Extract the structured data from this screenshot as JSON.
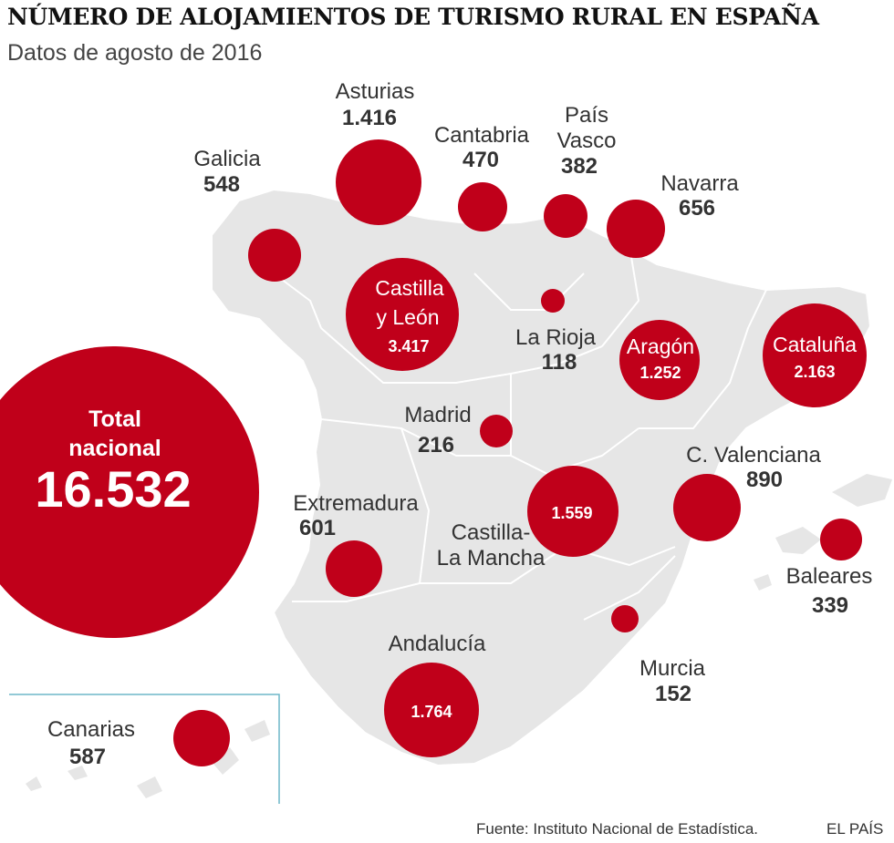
{
  "title": "NÚMERO DE ALOJAMIENTOS DE TURISMO RURAL EN ESPAÑA",
  "subtitle": "Datos de agosto de 2016",
  "source": "Fuente: Instituto Nacional de Estadística.",
  "brand": "EL PAÍS",
  "colors": {
    "bubble": "#c0001a",
    "land": "#e6e6e6",
    "borders": "#ffffff",
    "inset_frame": "#6fb7c9"
  },
  "total": {
    "label_line1": "Total",
    "label_line2": "nacional",
    "value": "16.532"
  },
  "regions": [
    {
      "id": "galicia",
      "name_lines": [
        "Galicia"
      ],
      "value": "548"
    },
    {
      "id": "asturias",
      "name_lines": [
        "Asturias"
      ],
      "value": "1.416"
    },
    {
      "id": "cantabria",
      "name_lines": [
        "Cantabria"
      ],
      "value": "470"
    },
    {
      "id": "pais-vasco",
      "name_lines": [
        "País",
        "Vasco"
      ],
      "value": "382"
    },
    {
      "id": "navarra",
      "name_lines": [
        "Navarra"
      ],
      "value": "656"
    },
    {
      "id": "castilla-leon",
      "name_lines": [
        "Castilla",
        "y León"
      ],
      "value": "3.417"
    },
    {
      "id": "la-rioja",
      "name_lines": [
        "La Rioja"
      ],
      "value": "118"
    },
    {
      "id": "aragon",
      "name_lines": [
        "Aragón"
      ],
      "value": "1.252"
    },
    {
      "id": "cataluna",
      "name_lines": [
        "Cataluña"
      ],
      "value": "2.163"
    },
    {
      "id": "madrid",
      "name_lines": [
        "Madrid"
      ],
      "value": "216"
    },
    {
      "id": "c-valenciana",
      "name_lines": [
        "C. Valenciana"
      ],
      "value": "890"
    },
    {
      "id": "extremadura",
      "name_lines": [
        "Extremadura"
      ],
      "value": "601"
    },
    {
      "id": "castilla-la-mancha",
      "name_lines": [
        "Castilla-",
        "La Mancha"
      ],
      "value": "1.559"
    },
    {
      "id": "baleares",
      "name_lines": [
        "Baleares"
      ],
      "value": "339"
    },
    {
      "id": "andalucia",
      "name_lines": [
        "Andalucía"
      ],
      "value": "1.764"
    },
    {
      "id": "murcia",
      "name_lines": [
        "Murcia"
      ],
      "value": "152"
    },
    {
      "id": "canarias",
      "name_lines": [
        "Canarias"
      ],
      "value": "587"
    }
  ]
}
